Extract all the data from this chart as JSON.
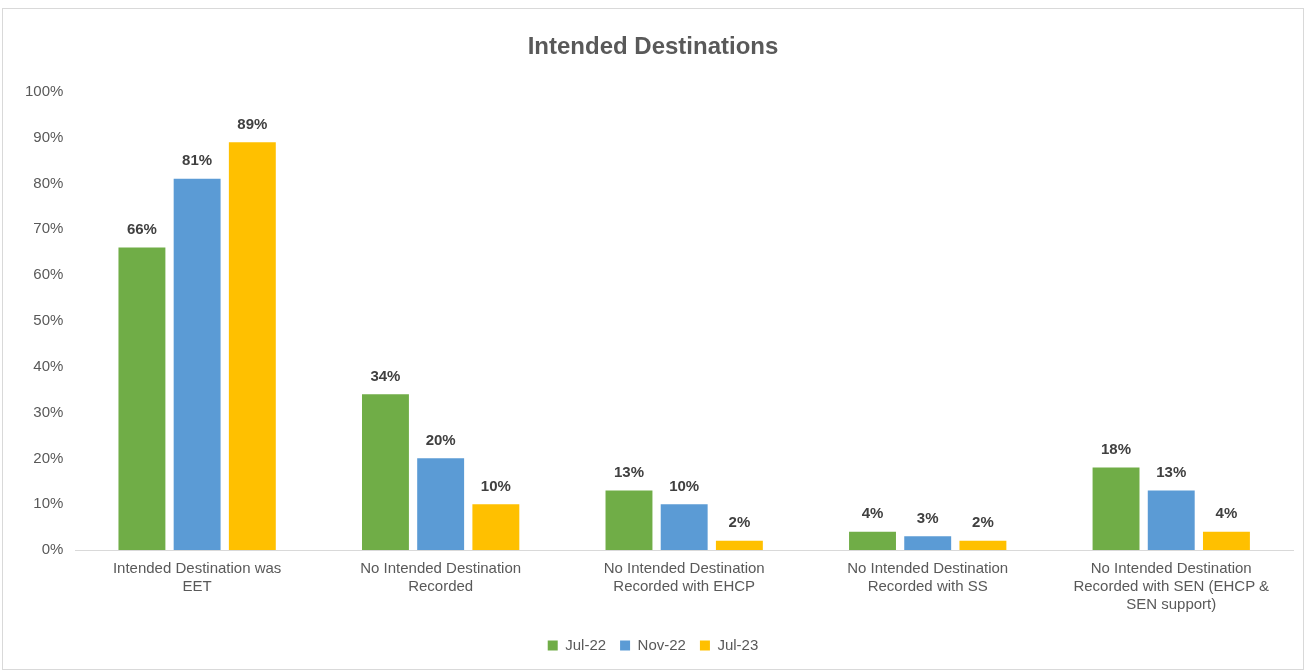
{
  "chart_data": {
    "type": "bar",
    "title": "Intended Destinations",
    "categories": [
      "Intended Destination was EET",
      "No Intended Destination Recorded",
      "No Intended Destination Recorded with EHCP",
      "No Intended Destination Recorded with SS",
      "No Intended Destination Recorded with SEN (EHCP & SEN support)"
    ],
    "series": [
      {
        "name": "Jul-22",
        "color": "#70ad47",
        "values": [
          66,
          34,
          13,
          4,
          18
        ],
        "value_labels": [
          "66%",
          "34%",
          "13%",
          "4%",
          "18%"
        ]
      },
      {
        "name": "Nov-22",
        "color": "#5b9bd5",
        "values": [
          81,
          20,
          10,
          3,
          13
        ],
        "value_labels": [
          "81%",
          "20%",
          "10%",
          "3%",
          "13%"
        ]
      },
      {
        "name": "Jul-23",
        "color": "#ffc000",
        "values": [
          89,
          10,
          2,
          2,
          4
        ],
        "value_labels": [
          "89%",
          "10%",
          "2%",
          "2%",
          "4%"
        ]
      }
    ],
    "ylim": [
      0,
      100
    ],
    "yticks": [
      {
        "value": 0,
        "label": "0%"
      },
      {
        "value": 10,
        "label": "10%"
      },
      {
        "value": 20,
        "label": "20%"
      },
      {
        "value": 30,
        "label": "30%"
      },
      {
        "value": 40,
        "label": "40%"
      },
      {
        "value": 50,
        "label": "50%"
      },
      {
        "value": 60,
        "label": "60%"
      },
      {
        "value": 70,
        "label": "70%"
      },
      {
        "value": 80,
        "label": "80%"
      },
      {
        "value": 90,
        "label": "90%"
      },
      {
        "value": 100,
        "label": "100%"
      }
    ],
    "grid": false,
    "legend": "bottom"
  }
}
